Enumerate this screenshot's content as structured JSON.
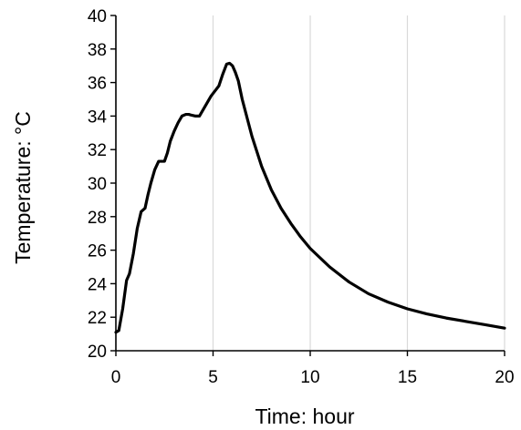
{
  "chart_data": {
    "type": "line",
    "title": "",
    "xlabel": "Time: hour",
    "ylabel": "Temperature: °C",
    "xlim": [
      0,
      20
    ],
    "ylim": [
      20,
      40
    ],
    "xticks": [
      0,
      5,
      10,
      15,
      20
    ],
    "yticks": [
      20,
      22,
      24,
      26,
      28,
      30,
      32,
      34,
      36,
      38,
      40
    ],
    "grid": {
      "x": true,
      "y": false
    },
    "legend": "none",
    "colors": {
      "line": "#000000",
      "grid": "#d9d9d9",
      "axis": "#000000"
    },
    "series": [
      {
        "x": [
          0,
          0.15,
          0.35,
          0.55,
          0.7,
          0.9,
          1.1,
          1.3,
          1.5,
          1.65,
          1.8,
          2.0,
          2.2,
          2.35,
          2.5,
          2.65,
          2.8,
          3.0,
          3.2,
          3.4,
          3.6,
          3.75,
          3.9,
          4.1,
          4.3,
          4.5,
          4.7,
          4.9,
          5.1,
          5.3,
          5.5,
          5.7,
          5.85,
          6.0,
          6.15,
          6.3,
          6.5,
          6.75,
          7.0,
          7.5,
          8.0,
          8.5,
          9.0,
          9.5,
          10.0,
          11.0,
          12.0,
          13.0,
          14.0,
          15.0,
          16.0,
          17.0,
          18.0,
          19.0,
          20.0
        ],
        "y": [
          21.1,
          21.2,
          22.5,
          24.2,
          24.6,
          25.8,
          27.3,
          28.3,
          28.5,
          29.3,
          30.0,
          30.8,
          31.3,
          31.3,
          31.3,
          31.8,
          32.5,
          33.1,
          33.6,
          34.0,
          34.1,
          34.1,
          34.05,
          34.0,
          34.0,
          34.4,
          34.8,
          35.2,
          35.5,
          35.8,
          36.5,
          37.1,
          37.15,
          37.0,
          36.6,
          36.1,
          35.0,
          33.9,
          32.8,
          31.0,
          29.6,
          28.5,
          27.6,
          26.8,
          26.1,
          25.0,
          24.1,
          23.4,
          22.9,
          22.5,
          22.2,
          21.95,
          21.75,
          21.55,
          21.35
        ]
      }
    ]
  }
}
